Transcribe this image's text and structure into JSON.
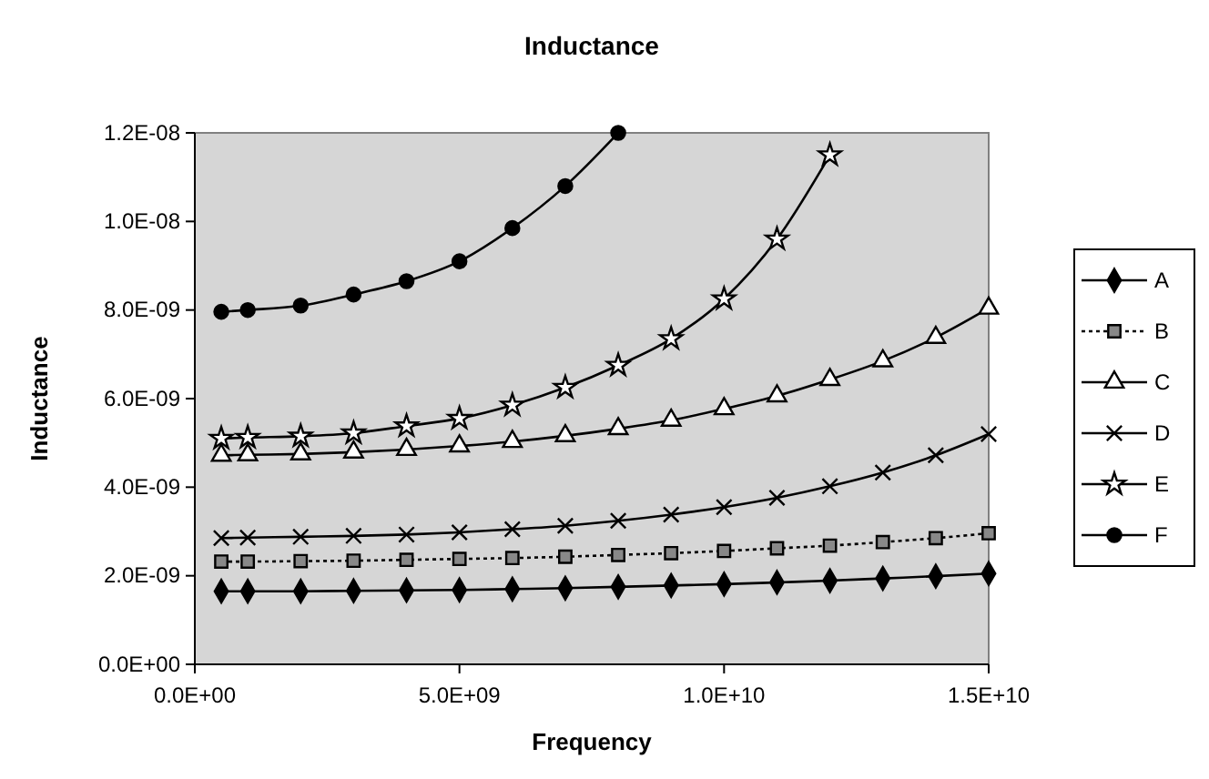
{
  "chart_data": {
    "type": "line",
    "title": "Inductance",
    "xlabel": "Frequency",
    "ylabel": "Inductance",
    "x": [
      500000000.0,
      1000000000.0,
      2000000000.0,
      3000000000.0,
      4000000000.0,
      5000000000.0,
      6000000000.0,
      7000000000.0,
      8000000000.0,
      9000000000.0,
      10000000000.0,
      11000000000.0,
      12000000000.0,
      13000000000.0,
      14000000000.0,
      15000000000.0
    ],
    "xlim": [
      0,
      15000000000.0
    ],
    "xticks": [
      {
        "value": 0,
        "label": "0.0E+00"
      },
      {
        "value": 5000000000.0,
        "label": "5.0E+09"
      },
      {
        "value": 10000000000.0,
        "label": "1.0E+10"
      },
      {
        "value": 15000000000.0,
        "label": "1.5E+10"
      }
    ],
    "ylim": [
      0,
      1.2e-08
    ],
    "yticks": [
      {
        "value": 0,
        "label": "0.0E+00"
      },
      {
        "value": 2e-09,
        "label": "2.0E-09"
      },
      {
        "value": 4e-09,
        "label": "4.0E-09"
      },
      {
        "value": 6e-09,
        "label": "6.0E-09"
      },
      {
        "value": 8e-09,
        "label": "8.0E-09"
      },
      {
        "value": 1e-08,
        "label": "1.0E-08"
      },
      {
        "value": 1.2e-08,
        "label": "1.2E-08"
      }
    ],
    "grid": false,
    "legend": "right",
    "series": [
      {
        "name": "A",
        "color": "#000000",
        "marker": "diamond",
        "line_style": "solid",
        "values": [
          1.65e-09,
          1.65e-09,
          1.65e-09,
          1.66e-09,
          1.67e-09,
          1.68e-09,
          1.7e-09,
          1.72e-09,
          1.75e-09,
          1.78e-09,
          1.81e-09,
          1.85e-09,
          1.89e-09,
          1.94e-09,
          1.99e-09,
          2.05e-09
        ]
      },
      {
        "name": "B",
        "color": "#000000",
        "marker": "square",
        "line_style": "dotted",
        "values": [
          2.32e-09,
          2.32e-09,
          2.33e-09,
          2.34e-09,
          2.36e-09,
          2.38e-09,
          2.4e-09,
          2.43e-09,
          2.47e-09,
          2.51e-09,
          2.56e-09,
          2.62e-09,
          2.68e-09,
          2.76e-09,
          2.85e-09,
          2.96e-09
        ]
      },
      {
        "name": "C",
        "color": "#000000",
        "marker": "triangle",
        "line_style": "solid",
        "values": [
          4.72e-09,
          4.73e-09,
          4.75e-09,
          4.79e-09,
          4.85e-09,
          4.93e-09,
          5.03e-09,
          5.16e-09,
          5.32e-09,
          5.51e-09,
          5.77e-09,
          6.06e-09,
          6.43e-09,
          6.85e-09,
          7.38e-09,
          8.04e-09
        ]
      },
      {
        "name": "D",
        "color": "#000000",
        "marker": "cross",
        "line_style": "solid",
        "values": [
          2.85e-09,
          2.86e-09,
          2.88e-09,
          2.9e-09,
          2.93e-09,
          2.98e-09,
          3.05e-09,
          3.13e-09,
          3.24e-09,
          3.38e-09,
          3.55e-09,
          3.76e-09,
          4.02e-09,
          4.33e-09,
          4.72e-09,
          5.2e-09
        ]
      },
      {
        "name": "E",
        "color": "#000000",
        "marker": "star",
        "line_style": "solid",
        "values": [
          5.1e-09,
          5.12e-09,
          5.15e-09,
          5.22e-09,
          5.38e-09,
          5.55e-09,
          5.85e-09,
          6.25e-09,
          6.75e-09,
          7.35e-09,
          8.25e-09,
          9.6e-09,
          1.15e-08,
          null,
          null,
          null
        ]
      },
      {
        "name": "F",
        "color": "#000000",
        "marker": "circle",
        "line_style": "solid",
        "values": [
          7.96e-09,
          8e-09,
          8.1e-09,
          8.35e-09,
          8.65e-09,
          9.1e-09,
          9.85e-09,
          1.08e-08,
          1.2e-08,
          null,
          null,
          null,
          null,
          null,
          null,
          null
        ]
      }
    ]
  }
}
